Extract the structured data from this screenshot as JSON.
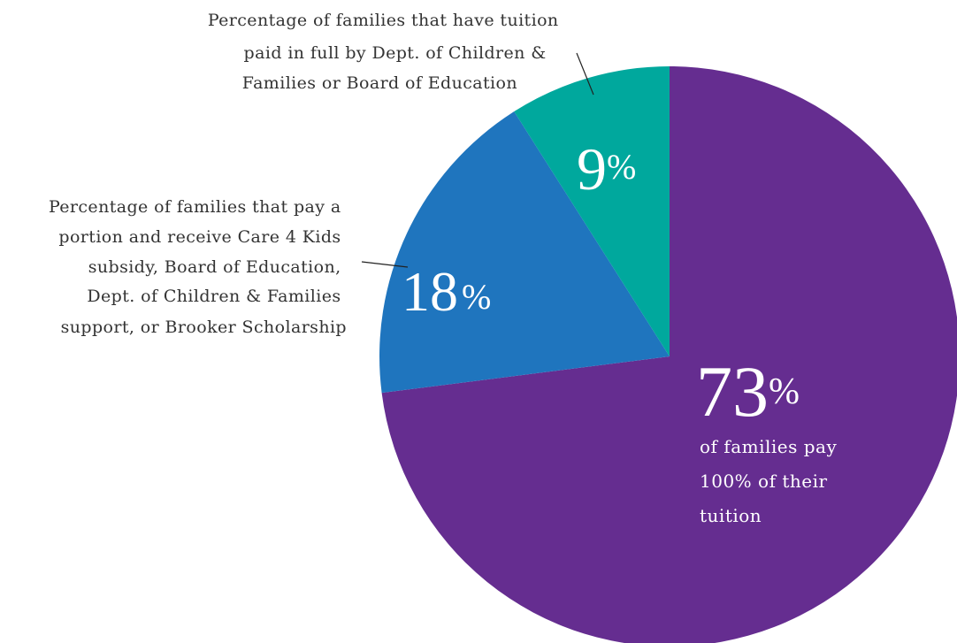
{
  "chart_data": {
    "type": "pie",
    "start": "12 o'clock",
    "direction": "clockwise",
    "slices": [
      {
        "value": 73,
        "label": "73",
        "sign": "%",
        "sublabel": [
          "of families pay",
          "100% of their",
          "tuition"
        ],
        "color": "#652d90"
      },
      {
        "value": 18,
        "label": "18",
        "sign": "%",
        "annotation": [
          "Percentage of families that pay a",
          "portion and receive Care 4 Kids",
          "subsidy, Board of Education,",
          "Dept. of Children & Families",
          "support, or Brooker Scholarship"
        ],
        "color": "#1f75be"
      },
      {
        "value": 9,
        "label": "9",
        "sign": "%",
        "annotation": [
          "Percentage of families that have tuition",
          "paid in full by Dept. of Children &",
          "Families or Board of Education"
        ],
        "color": "#00a89d"
      }
    ]
  }
}
